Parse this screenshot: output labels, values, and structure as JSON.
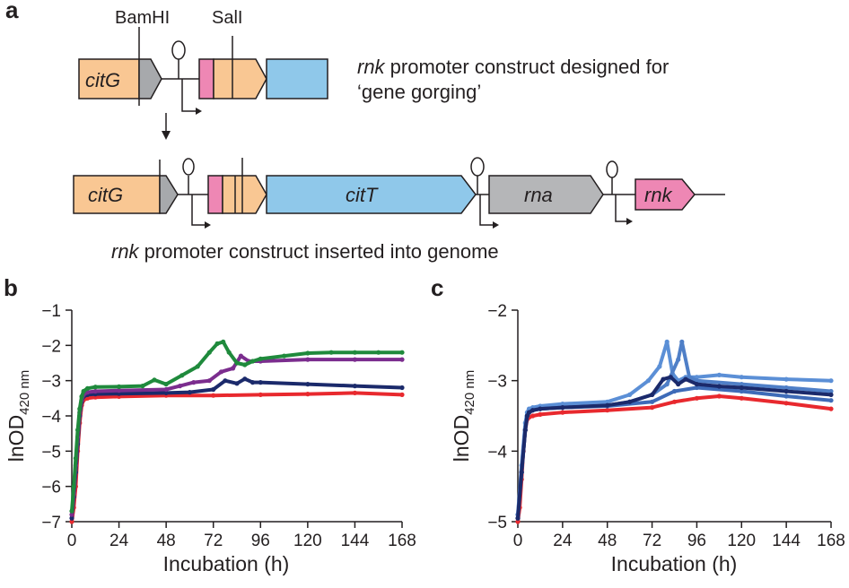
{
  "panel_a": {
    "letter": "a",
    "top_construct": {
      "gene_citG": "citG",
      "site_bamhi": "BamHI",
      "site_sali": "SalI",
      "caption_italic": "rnk",
      "caption_rest_line1": " promoter construct designed for",
      "caption_line2": "‘gene gorging’"
    },
    "bottom_construct": {
      "gene_citG": "citG",
      "gene_citT": "citT",
      "gene_rna": "rna",
      "gene_rnk": "rnk",
      "caption_italic": "rnk",
      "caption_rest": " promoter construct inserted into genome"
    },
    "colors": {
      "citG": "#f9c793",
      "grey": "#a7a9ac",
      "pink": "#ee87b4",
      "citT": "#8fc8ea",
      "rna": "#b5b6b8"
    }
  },
  "chart_data": [
    {
      "panel": "b",
      "type": "scatter",
      "xlabel": "Incubation (h)",
      "ylabel_main": "lnOD",
      "ylabel_sub": "420 nm",
      "xlim": [
        0,
        168
      ],
      "ylim": [
        -7,
        -1
      ],
      "xticks": [
        0,
        24,
        48,
        72,
        96,
        120,
        144,
        168
      ],
      "yticks": [
        -7,
        -6,
        -5,
        -4,
        -3,
        -2,
        -1
      ],
      "series": [
        {
          "color": "#e8292e",
          "x": [
            0,
            1,
            2,
            3,
            4,
            5,
            6,
            8,
            12,
            24,
            48,
            72,
            96,
            120,
            144,
            168
          ],
          "y": [
            -7.0,
            -6.6,
            -6.0,
            -5.0,
            -4.2,
            -3.7,
            -3.55,
            -3.5,
            -3.47,
            -3.45,
            -3.42,
            -3.42,
            -3.4,
            -3.38,
            -3.35,
            -3.4
          ]
        },
        {
          "color": "#1b2a6b",
          "x": [
            0,
            1,
            2,
            3,
            4,
            5,
            6,
            8,
            12,
            24,
            48,
            60,
            72,
            78,
            84,
            88,
            92,
            96,
            120,
            144,
            168
          ],
          "y": [
            -6.9,
            -6.3,
            -5.6,
            -4.8,
            -4.0,
            -3.6,
            -3.45,
            -3.4,
            -3.38,
            -3.37,
            -3.35,
            -3.33,
            -3.25,
            -3.0,
            -3.08,
            -2.95,
            -3.05,
            -3.05,
            -3.1,
            -3.15,
            -3.2
          ]
        },
        {
          "color": "#7b2d8e",
          "x": [
            0,
            1,
            2,
            3,
            4,
            5,
            6,
            8,
            12,
            24,
            48,
            55,
            62,
            70,
            76,
            82,
            86,
            90,
            96,
            120,
            144,
            168
          ],
          "y": [
            -6.8,
            -6.2,
            -5.4,
            -4.6,
            -3.9,
            -3.55,
            -3.4,
            -3.33,
            -3.3,
            -3.28,
            -3.25,
            -3.15,
            -3.05,
            -3.0,
            -2.75,
            -2.65,
            -2.3,
            -2.45,
            -2.45,
            -2.4,
            -2.4,
            -2.4
          ]
        },
        {
          "color": "#1f8a3c",
          "x": [
            0,
            1,
            2,
            3,
            4,
            5,
            6,
            8,
            12,
            24,
            36,
            42,
            48,
            56,
            64,
            70,
            74,
            77,
            80,
            84,
            88,
            92,
            96,
            108,
            120,
            132,
            144,
            156,
            168
          ],
          "y": [
            -6.7,
            -6.0,
            -5.2,
            -4.4,
            -3.8,
            -3.45,
            -3.3,
            -3.22,
            -3.18,
            -3.17,
            -3.15,
            -2.98,
            -3.1,
            -2.85,
            -2.6,
            -2.2,
            -1.95,
            -1.9,
            -2.2,
            -2.5,
            -2.55,
            -2.45,
            -2.38,
            -2.3,
            -2.22,
            -2.2,
            -2.2,
            -2.2,
            -2.2
          ]
        }
      ]
    },
    {
      "panel": "c",
      "type": "scatter",
      "xlabel": "Incubation (h)",
      "ylabel_main": "lnOD",
      "ylabel_sub": "420 nm",
      "xlim": [
        0,
        168
      ],
      "ylim": [
        -5,
        -2
      ],
      "xticks": [
        0,
        24,
        48,
        72,
        96,
        120,
        144,
        168
      ],
      "yticks": [
        -5,
        -4,
        -3,
        -2
      ],
      "series": [
        {
          "color": "#e8292e",
          "x": [
            0,
            1,
            2,
            3,
            4,
            5,
            6,
            8,
            12,
            24,
            48,
            72,
            84,
            96,
            108,
            120,
            144,
            168
          ],
          "y": [
            -5.0,
            -4.8,
            -4.4,
            -4.0,
            -3.7,
            -3.55,
            -3.52,
            -3.5,
            -3.48,
            -3.45,
            -3.42,
            -3.38,
            -3.3,
            -3.25,
            -3.22,
            -3.25,
            -3.32,
            -3.4
          ]
        },
        {
          "color": "#5b8fd6",
          "x": [
            0,
            2,
            4,
            5,
            6,
            8,
            12,
            24,
            48,
            60,
            70,
            76,
            80,
            83,
            86,
            90,
            96,
            108,
            120,
            144,
            168
          ],
          "y": [
            -4.9,
            -4.2,
            -3.6,
            -3.45,
            -3.4,
            -3.38,
            -3.36,
            -3.33,
            -3.3,
            -3.2,
            -3.0,
            -2.8,
            -2.45,
            -2.9,
            -3.0,
            -2.95,
            -2.95,
            -2.92,
            -2.95,
            -2.98,
            -3.0
          ]
        },
        {
          "color": "#4f7fc7",
          "x": [
            0,
            2,
            4,
            5,
            6,
            8,
            12,
            24,
            48,
            60,
            72,
            80,
            86,
            88,
            92,
            96,
            120,
            144,
            168
          ],
          "y": [
            -4.9,
            -4.3,
            -3.7,
            -3.5,
            -3.45,
            -3.42,
            -3.4,
            -3.38,
            -3.35,
            -3.3,
            -3.2,
            -3.05,
            -2.7,
            -2.45,
            -2.95,
            -3.0,
            -3.05,
            -3.1,
            -3.15
          ]
        },
        {
          "color": "#3e6bb8",
          "x": [
            0,
            2,
            4,
            5,
            6,
            8,
            12,
            24,
            48,
            72,
            84,
            96,
            120,
            144,
            168
          ],
          "y": [
            -4.95,
            -4.3,
            -3.7,
            -3.5,
            -3.45,
            -3.42,
            -3.4,
            -3.38,
            -3.36,
            -3.3,
            -3.15,
            -3.1,
            -3.15,
            -3.22,
            -3.28
          ]
        },
        {
          "color": "#1b2a6b",
          "x": [
            0,
            2,
            4,
            5,
            6,
            8,
            12,
            24,
            48,
            60,
            72,
            78,
            82,
            86,
            90,
            96,
            108,
            120,
            144,
            168
          ],
          "y": [
            -4.95,
            -4.3,
            -3.7,
            -3.5,
            -3.45,
            -3.42,
            -3.4,
            -3.38,
            -3.35,
            -3.3,
            -3.2,
            -2.98,
            -2.95,
            -3.05,
            -2.98,
            -3.05,
            -3.08,
            -3.1,
            -3.15,
            -3.2
          ]
        }
      ]
    }
  ]
}
